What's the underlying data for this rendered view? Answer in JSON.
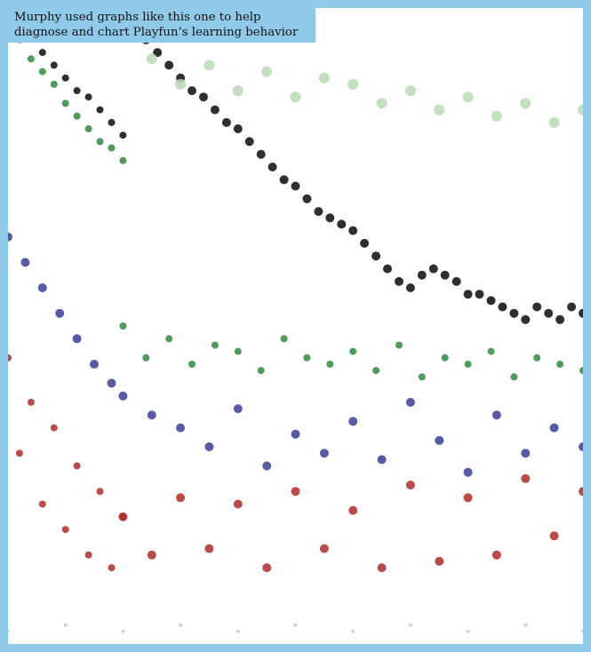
{
  "caption": {
    "line1": "Murphy used graphs like this one to help",
    "line2": "diagnose and chart Playfun’s learning behavior"
  },
  "chart_data": {
    "type": "scatter",
    "title": "",
    "xlabel": "",
    "ylabel": "",
    "xlim": [
      0,
      100
    ],
    "ylim": [
      0,
      100
    ],
    "grid": false,
    "legend": "none",
    "series": [
      {
        "color": "#0a0a0a",
        "size": 5,
        "x": [
          20,
          22,
          24,
          26,
          28,
          30,
          32,
          34,
          36,
          38,
          40,
          42,
          44,
          46,
          48,
          50,
          52,
          54,
          56,
          58,
          60,
          62,
          64,
          66,
          68,
          70,
          72,
          74,
          76,
          78,
          80,
          82,
          84,
          86,
          88,
          90,
          92,
          94,
          96,
          98,
          100
        ],
        "y": [
          99,
          97,
          95,
          93,
          91,
          89,
          87,
          86,
          84,
          82,
          81,
          79,
          77,
          75,
          73,
          72,
          70,
          68,
          67,
          66,
          65,
          63,
          61,
          59,
          57,
          56,
          58,
          59,
          58,
          57,
          55,
          55,
          54,
          53,
          52,
          51,
          53,
          52,
          51,
          53,
          52
        ]
      },
      {
        "color": "#0a0a0a",
        "size": 4,
        "x": [
          0,
          2,
          4,
          6,
          8,
          10,
          12,
          14,
          16,
          18,
          20
        ],
        "y": [
          100,
          98,
          96,
          93,
          91,
          89,
          87,
          86,
          84,
          82,
          80
        ]
      },
      {
        "color": "#2e8b3e",
        "size": 4,
        "x": [
          20,
          24,
          28,
          32,
          36,
          40,
          44,
          48,
          52,
          56,
          60,
          64,
          68,
          72,
          76,
          80,
          84,
          88,
          92,
          96,
          100
        ],
        "y": [
          50,
          45,
          48,
          44,
          47,
          46,
          43,
          48,
          45,
          44,
          46,
          43,
          47,
          42,
          45,
          44,
          46,
          42,
          45,
          44,
          43
        ]
      },
      {
        "color": "#2e8b3e",
        "size": 4,
        "x": [
          0,
          2,
          4,
          6,
          8,
          10,
          12,
          14,
          16,
          18,
          20
        ],
        "y": [
          97,
          95,
          92,
          90,
          88,
          85,
          83,
          81,
          79,
          78,
          76
        ]
      },
      {
        "color": "#b7d9b3",
        "size": 6,
        "x": [
          25,
          30,
          35,
          40,
          45,
          50,
          55,
          60,
          65,
          70,
          75,
          80,
          85,
          90,
          95,
          100
        ],
        "y": [
          92,
          88,
          91,
          87,
          90,
          86,
          89,
          88,
          85,
          87,
          84,
          86,
          83,
          85,
          82,
          84
        ]
      },
      {
        "color": "#3a3d96",
        "size": 5,
        "x": [
          0,
          3,
          6,
          9,
          12,
          15,
          18,
          20,
          25,
          30,
          35,
          40,
          45,
          50,
          55,
          60,
          65,
          70,
          75,
          80,
          85,
          90,
          95,
          100
        ],
        "y": [
          64,
          60,
          56,
          52,
          48,
          44,
          41,
          39,
          36,
          34,
          31,
          37,
          28,
          33,
          30,
          35,
          29,
          38,
          32,
          27,
          36,
          30,
          34,
          31
        ]
      },
      {
        "color": "#b12a2a",
        "size": 5,
        "x": [
          20,
          25,
          30,
          35,
          40,
          45,
          50,
          55,
          60,
          65,
          70,
          75,
          80,
          85,
          90,
          95,
          100
        ],
        "y": [
          20,
          14,
          23,
          15,
          22,
          12,
          24,
          15,
          21,
          12,
          25,
          13,
          23,
          14,
          26,
          17,
          24
        ]
      },
      {
        "color": "#b12a2a",
        "size": 4,
        "x": [
          0,
          2,
          4,
          6,
          8,
          10,
          12,
          14,
          16,
          18,
          20
        ],
        "y": [
          45,
          30,
          38,
          22,
          34,
          18,
          28,
          14,
          24,
          12,
          20
        ]
      },
      {
        "color": "#c9c9c9",
        "size": 2,
        "x": [
          0,
          10,
          20,
          30,
          40,
          50,
          60,
          70,
          80,
          90,
          100
        ],
        "y": [
          2,
          3,
          2,
          3,
          2,
          3,
          2,
          3,
          2,
          3,
          2
        ]
      }
    ]
  }
}
